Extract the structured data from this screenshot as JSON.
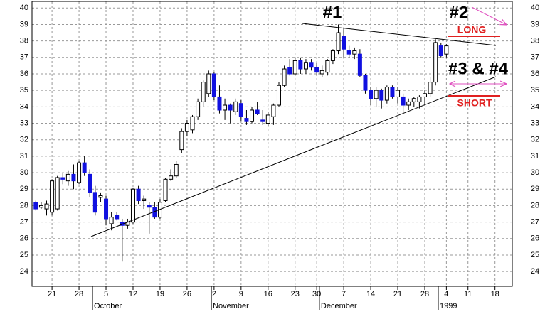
{
  "chart_data": {
    "type": "candlestick",
    "x": [
      0,
      1,
      2,
      3,
      4,
      5,
      6,
      7,
      8,
      9,
      10,
      11,
      12,
      13,
      14,
      15,
      16,
      17,
      18,
      19,
      20,
      21,
      22,
      23,
      24,
      25,
      26,
      27,
      28,
      29,
      30,
      31,
      32,
      33,
      34,
      35,
      36,
      37,
      38,
      39,
      40,
      41,
      42,
      43,
      44,
      45,
      46,
      47,
      48,
      49,
      50,
      51,
      52,
      53,
      54,
      55,
      56,
      57,
      58,
      59,
      60,
      61,
      62,
      63,
      64,
      65,
      66,
      67,
      68,
      69,
      70,
      71,
      72,
      73,
      74,
      75,
      76
    ],
    "open": [
      28.2,
      27.9,
      27.8,
      27.6,
      27.8,
      29.7,
      29.5,
      29.9,
      29.4,
      30.6,
      29.9,
      28.8,
      28.5,
      28.4,
      26.9,
      27.4,
      27.0,
      26.8,
      27.0,
      29.0,
      28.3,
      28.0,
      27.9,
      27.3,
      28.3,
      29.6,
      29.8,
      31.4,
      32.5,
      32.6,
      33.4,
      34.3,
      34.8,
      36.0,
      34.6,
      33.8,
      34.1,
      33.7,
      34.2,
      33.3,
      33.1,
      33.8,
      33.2,
      33.0,
      33.4,
      34.1,
      35.3,
      36.4,
      36.0,
      36.8,
      36.3,
      36.7,
      36.4,
      36.0,
      36.1,
      36.8,
      37.4,
      38.3,
      37.4,
      37.2,
      37.2,
      35.9,
      35.0,
      34.5,
      35.0,
      34.4,
      35.2,
      34.6,
      34.6,
      34.1,
      34.3,
      34.3,
      34.6,
      34.8,
      35.5,
      37.7,
      37.2
    ],
    "high": [
      28.3,
      28.2,
      28.3,
      29.6,
      29.8,
      30.0,
      30.1,
      30.5,
      30.7,
      31.0,
      30.2,
      29.2,
      28.8,
      28.6,
      27.6,
      27.6,
      27.2,
      27.2,
      29.1,
      29.2,
      28.6,
      28.2,
      28.2,
      28.4,
      29.7,
      30.2,
      30.7,
      32.7,
      33.2,
      33.5,
      34.5,
      35.6,
      36.2,
      36.1,
      35.3,
      34.5,
      34.2,
      34.5,
      34.4,
      33.8,
      34.0,
      34.3,
      33.8,
      33.7,
      34.2,
      35.5,
      36.5,
      36.9,
      37.0,
      37.0,
      36.9,
      36.9,
      36.7,
      36.5,
      36.9,
      37.5,
      39.0,
      38.8,
      37.7,
      37.6,
      37.5,
      36.0,
      35.2,
      35.2,
      35.1,
      35.3,
      35.3,
      35.2,
      34.8,
      34.5,
      34.6,
      34.7,
      35.0,
      35.8,
      38.1,
      37.9,
      37.8
    ],
    "low": [
      27.7,
      27.8,
      27.4,
      27.4,
      27.7,
      29.3,
      29.2,
      29.0,
      29.3,
      29.8,
      28.5,
      27.4,
      28.2,
      26.8,
      26.5,
      27.1,
      24.6,
      26.6,
      26.9,
      28.1,
      27.8,
      26.3,
      27.2,
      27.2,
      28.2,
      29.5,
      29.7,
      31.2,
      32.2,
      32.4,
      33.2,
      34.0,
      34.6,
      34.4,
      33.6,
      33.2,
      33.0,
      33.5,
      33.1,
      32.9,
      33.0,
      33.5,
      32.9,
      32.8,
      32.9,
      34.0,
      35.2,
      35.9,
      35.9,
      36.0,
      36.0,
      36.2,
      35.9,
      35.8,
      35.9,
      36.6,
      37.2,
      37.0,
      37.0,
      36.9,
      35.8,
      34.8,
      34.1,
      34.0,
      33.9,
      34.2,
      34.5,
      34.2,
      33.6,
      33.8,
      34.0,
      33.9,
      34.1,
      34.6,
      35.3,
      37.0,
      37.0
    ],
    "close": [
      27.8,
      28.0,
      28.1,
      29.5,
      29.7,
      29.6,
      29.9,
      29.5,
      30.6,
      30.0,
      28.8,
      27.6,
      28.6,
      27.2,
      27.3,
      27.2,
      26.8,
      27.0,
      29.0,
      28.3,
      28.4,
      27.9,
      27.3,
      28.2,
      29.6,
      29.8,
      30.5,
      32.5,
      33.0,
      33.4,
      34.3,
      35.5,
      36.0,
      34.6,
      33.8,
      34.1,
      33.8,
      34.3,
      33.4,
      33.1,
      33.8,
      33.6,
      33.1,
      33.5,
      34.1,
      35.3,
      36.3,
      36.0,
      36.8,
      36.3,
      36.7,
      36.4,
      36.1,
      36.2,
      36.8,
      37.4,
      38.5,
      37.5,
      37.2,
      37.4,
      35.9,
      35.0,
      34.5,
      35.0,
      34.4,
      35.2,
      34.6,
      35.0,
      34.1,
      34.3,
      34.5,
      34.6,
      34.8,
      35.5,
      37.9,
      37.1,
      37.7
    ],
    "up_color": "#ffffff",
    "down_color": "#1010e0",
    "xlim": [
      -0.7,
      88.2
    ],
    "xticks": [
      {
        "value": 3,
        "label": "21"
      },
      {
        "value": 8,
        "label": "28"
      },
      {
        "value": 13,
        "label": "5"
      },
      {
        "value": 18,
        "label": "12"
      },
      {
        "value": 23,
        "label": "19"
      },
      {
        "value": 28,
        "label": "26"
      },
      {
        "value": 33,
        "label": "2"
      },
      {
        "value": 38,
        "label": "9"
      },
      {
        "value": 43,
        "label": "16"
      },
      {
        "value": 48,
        "label": "23"
      },
      {
        "value": 52,
        "label": "30"
      },
      {
        "value": 57,
        "label": "7"
      },
      {
        "value": 62,
        "label": "14"
      },
      {
        "value": 67,
        "label": "21"
      },
      {
        "value": 72,
        "label": "28"
      },
      {
        "value": 76,
        "label": "4"
      },
      {
        "value": 80,
        "label": "11"
      },
      {
        "value": 85,
        "label": "18"
      }
    ],
    "month_ticks": [
      {
        "value": 10.5,
        "label": "October"
      },
      {
        "value": 32.5,
        "label": "November"
      },
      {
        "value": 52.5,
        "label": "December"
      },
      {
        "value": 74.5,
        "label": "1999"
      }
    ],
    "ylim": [
      23.1,
      40.4
    ],
    "yticks": [
      24,
      25,
      26,
      27,
      28,
      29,
      30,
      31,
      32,
      33,
      34,
      35,
      36,
      37,
      38,
      39,
      40
    ],
    "grid": true,
    "annotations": {
      "first": "#1",
      "second": "#2",
      "long": "LONG",
      "third_fourth": "#3 & #4",
      "short": "SHORT"
    }
  }
}
